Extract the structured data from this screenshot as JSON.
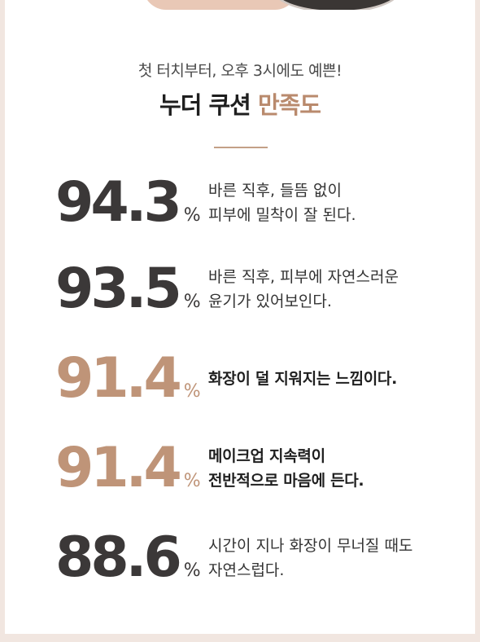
{
  "header": {
    "subtitle": "첫 터치부터, 오후 3시에도 예쁜!",
    "title_main": "누더 쿠션 ",
    "title_accent": "만족도"
  },
  "stats": [
    {
      "value": "94.3",
      "unit": "%",
      "line1": "바른 직후, 들뜸 없이",
      "line2": "피부에 밀착이 잘 된다."
    },
    {
      "value": "93.5",
      "unit": "%",
      "line1": "바른 직후, 피부에 자연스러운",
      "line2": "윤기가 있어보인다."
    },
    {
      "value": "91.4",
      "unit": "%",
      "line1": "화장이 덜 지워지는 느낌이다.",
      "line2": ""
    },
    {
      "value": "91.4",
      "unit": "%",
      "line1": "메이크업 지속력이",
      "line2": "전반적으로 마음에 든다."
    },
    {
      "value": "88.6",
      "unit": "%",
      "line1": "시간이 지나 화장이 무너질 때도",
      "line2": "자연스럽다."
    }
  ],
  "colors": {
    "dark": "#3b3838",
    "accent": "#bf9478",
    "background": "#f1e6e0"
  }
}
